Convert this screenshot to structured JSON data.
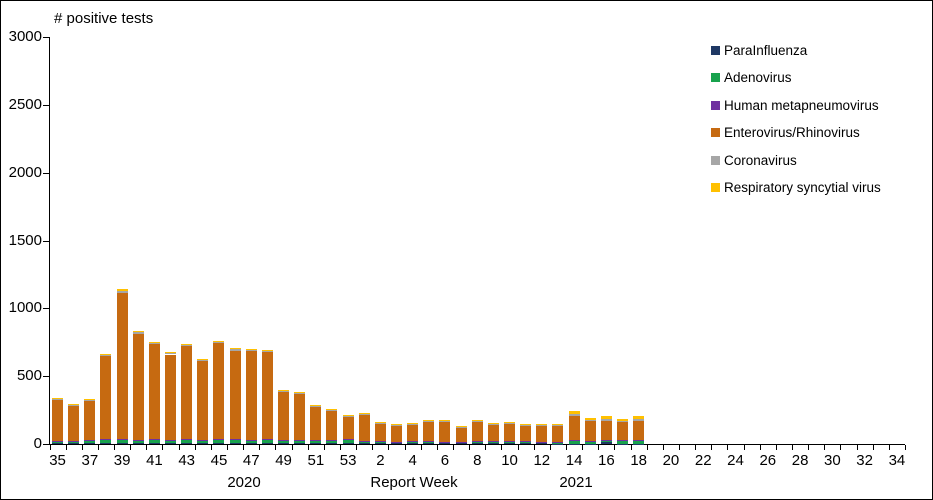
{
  "chart_data": {
    "type": "bar",
    "stacked": true,
    "title": "# positive tests",
    "xlabel": "Report Week",
    "year_labels": [
      "2020",
      "2021"
    ],
    "ylim": [
      0,
      3000
    ],
    "yticks": [
      0,
      500,
      1000,
      1500,
      2000,
      2500,
      3000
    ],
    "grid": "off",
    "legend_position": "right",
    "label_every": 2,
    "categories": [
      "35",
      "36",
      "37",
      "38",
      "39",
      "40",
      "41",
      "42",
      "43",
      "44",
      "45",
      "46",
      "47",
      "48",
      "49",
      "50",
      "51",
      "52",
      "53",
      "1",
      "2",
      "3",
      "4",
      "5",
      "6",
      "7",
      "8",
      "9",
      "10",
      "11",
      "12",
      "13",
      "14",
      "15",
      "16",
      "17",
      "18",
      "19",
      "20",
      "21",
      "22",
      "23",
      "24",
      "25",
      "26",
      "27",
      "28",
      "29",
      "30",
      "31",
      "32",
      "33",
      "34"
    ],
    "series": [
      {
        "name": "ParaInfluenza",
        "color": "#1F3864",
        "values": [
          5,
          5,
          5,
          5,
          5,
          5,
          8,
          5,
          8,
          5,
          8,
          8,
          5,
          5,
          5,
          5,
          8,
          5,
          5,
          8,
          5,
          5,
          8,
          5,
          5,
          5,
          8,
          5,
          8,
          8,
          5,
          3,
          3,
          3,
          15,
          3,
          3,
          0,
          0,
          0,
          0,
          0,
          0,
          0,
          0,
          0,
          0,
          0,
          0,
          0,
          0,
          0,
          0
        ]
      },
      {
        "name": "Adenovirus",
        "color": "#18A24D",
        "values": [
          15,
          15,
          18,
          25,
          25,
          22,
          25,
          22,
          22,
          20,
          22,
          25,
          20,
          25,
          20,
          20,
          15,
          20,
          25,
          12,
          12,
          10,
          8,
          12,
          10,
          10,
          12,
          12,
          10,
          8,
          10,
          10,
          20,
          18,
          8,
          20,
          22,
          0,
          0,
          0,
          0,
          0,
          0,
          0,
          0,
          0,
          0,
          0,
          0,
          0,
          0,
          0,
          0
        ]
      },
      {
        "name": "Human metapneumovirus",
        "color": "#7030A0",
        "values": [
          3,
          3,
          5,
          5,
          5,
          5,
          5,
          5,
          5,
          5,
          5,
          5,
          5,
          5,
          5,
          5,
          5,
          5,
          5,
          5,
          3,
          3,
          3,
          3,
          3,
          3,
          3,
          3,
          3,
          3,
          3,
          3,
          3,
          3,
          3,
          3,
          3,
          0,
          0,
          0,
          0,
          0,
          0,
          0,
          0,
          0,
          0,
          0,
          0,
          0,
          0,
          0,
          0
        ]
      },
      {
        "name": "Enterovirus/Rhinovirus",
        "color": "#C66A11",
        "values": [
          305,
          262,
          290,
          615,
          1075,
          780,
          700,
          628,
          688,
          585,
          710,
          650,
          655,
          640,
          357,
          342,
          250,
          218,
          168,
          193,
          130,
          117,
          126,
          148,
          150,
          107,
          140,
          123,
          132,
          120,
          120,
          122,
          180,
          145,
          145,
          135,
          145,
          0,
          0,
          0,
          0,
          0,
          0,
          0,
          0,
          0,
          0,
          0,
          0,
          0,
          0,
          0,
          0
        ]
      },
      {
        "name": "Coronavirus",
        "color": "#A6A6A6",
        "values": [
          5,
          5,
          5,
          8,
          20,
          15,
          10,
          8,
          10,
          8,
          8,
          10,
          8,
          8,
          6,
          6,
          5,
          5,
          5,
          5,
          4,
          4,
          4,
          5,
          5,
          4,
          5,
          5,
          5,
          4,
          5,
          5,
          14,
          8,
          12,
          8,
          10,
          0,
          0,
          0,
          0,
          0,
          0,
          0,
          0,
          0,
          0,
          0,
          0,
          0,
          0,
          0,
          0
        ]
      },
      {
        "name": "Respiratory syncytial virus",
        "color": "#FFC000",
        "values": [
          7,
          5,
          7,
          7,
          10,
          8,
          7,
          7,
          7,
          7,
          7,
          7,
          7,
          7,
          7,
          7,
          7,
          7,
          7,
          7,
          6,
          6,
          6,
          7,
          7,
          6,
          7,
          7,
          7,
          7,
          7,
          7,
          20,
          18,
          22,
          16,
          22,
          0,
          0,
          0,
          0,
          0,
          0,
          0,
          0,
          0,
          0,
          0,
          0,
          0,
          0,
          0,
          0
        ]
      }
    ]
  }
}
